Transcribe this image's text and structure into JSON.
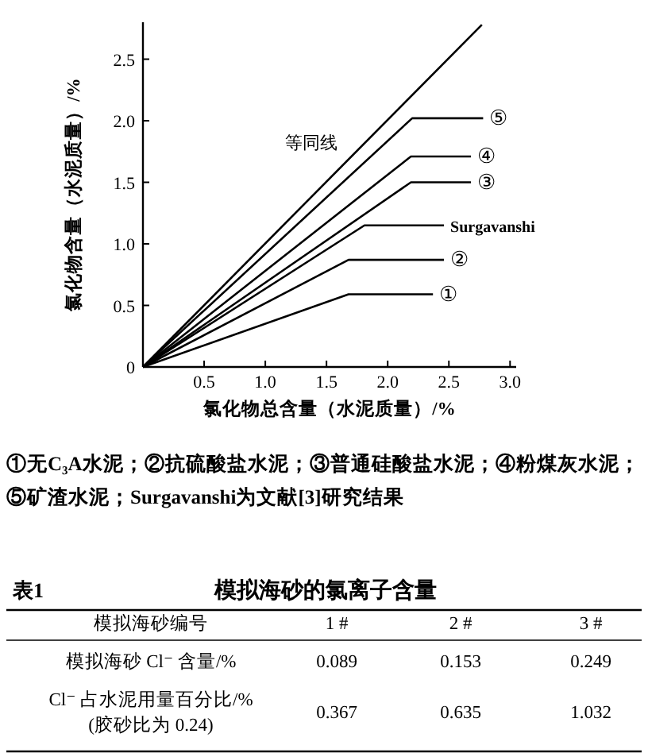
{
  "chart_data": [
    {
      "type": "line",
      "xlabel": "氯化物总含量（水泥质量）/%",
      "ylabel": "氯化物含量（水泥质量）/%",
      "xlim": [
        0,
        3.05
      ],
      "ylim": [
        0,
        2.8
      ],
      "xticks": [
        {
          "value": 0.5,
          "label": "0.5"
        },
        {
          "value": 1,
          "label": "1.0"
        },
        {
          "value": 1.5,
          "label": "1.5"
        },
        {
          "value": 2,
          "label": "2.0"
        },
        {
          "value": 2.5,
          "label": "2.5"
        },
        {
          "value": 3,
          "label": "3.0"
        }
      ],
      "yticks": [
        0,
        {
          "value": 0.5,
          "label": "0.5"
        },
        {
          "value": 1,
          "label": "1.0"
        },
        {
          "value": 1.5,
          "label": "1.5"
        },
        {
          "value": 2,
          "label": "2.0"
        },
        {
          "value": 2.5,
          "label": "2.5"
        }
      ],
      "grid": false,
      "marker": "none",
      "line_style": "solid",
      "series": [
        {
          "name": "等同线",
          "color": "#000000",
          "x": [
            0,
            2.77
          ],
          "values": [
            0,
            2.78
          ]
        },
        {
          "name": "⑤",
          "color": "#000000",
          "x": [
            0,
            2.2,
            2.78
          ],
          "values": [
            0,
            2.02,
            2.02
          ]
        },
        {
          "name": "④",
          "color": "#000000",
          "x": [
            0,
            2.19,
            2.68
          ],
          "values": [
            0,
            1.71,
            1.71
          ]
        },
        {
          "name": "③",
          "color": "#000000",
          "x": [
            0,
            2.19,
            2.68
          ],
          "values": [
            0,
            1.5,
            1.5
          ]
        },
        {
          "name": "Surgavanshi",
          "color": "#000000",
          "x": [
            0,
            1.81,
            2.46
          ],
          "values": [
            0,
            1.15,
            1.15
          ]
        },
        {
          "name": "②",
          "color": "#000000",
          "x": [
            0,
            1.68,
            2.46
          ],
          "values": [
            0,
            0.87,
            0.87
          ]
        },
        {
          "name": "①",
          "color": "#000000",
          "x": [
            0,
            1.68,
            2.37
          ],
          "values": [
            0,
            0.59,
            0.59
          ]
        }
      ],
      "annotations": [
        "①无C₃A水泥；②抗硫酸盐水泥；③普通硅酸盐水泥；④粉煤灰水泥；⑤矿渣水泥；Surgavanshi为文献[3]研究结果"
      ]
    },
    {
      "type": "other",
      "title": "模拟海砂的氯离子含量",
      "annotations": [
        "表1",
        "模拟海砂编号",
        "1 #",
        "2 #",
        "3 #",
        "模拟海砂 Cl⁻ 含量/%",
        "0.089",
        "0.153",
        "0.249",
        "Cl⁻ 占水泥用量百分比/%\n(胶砂比为 0.24)",
        "0.367",
        "0.635",
        "1.032"
      ]
    }
  ]
}
